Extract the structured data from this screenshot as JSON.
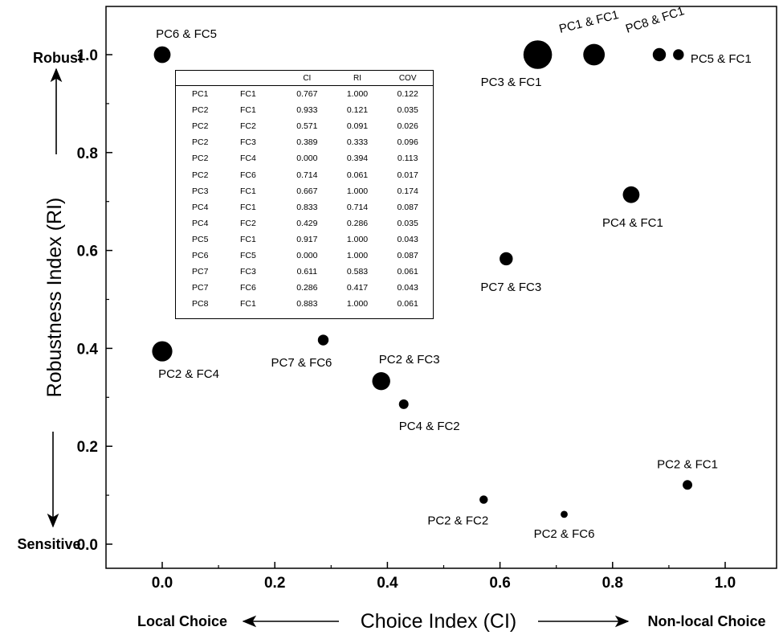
{
  "chart_data": {
    "type": "scatter",
    "xlabel": "Choice Index (CI)",
    "ylabel": "Robustness Index (RI)",
    "xlim": [
      -0.05,
      1.1
    ],
    "ylim": [
      -0.05,
      1.1
    ],
    "xticks": [
      "0.0",
      "0.2",
      "0.4",
      "0.6",
      "0.8",
      "1.0"
    ],
    "yticks": [
      "0.0",
      "0.2",
      "0.4",
      "0.6",
      "0.8",
      "1.0"
    ],
    "x_left_label": "Local Choice",
    "x_right_label": "Non-local Choice",
    "y_top_label": "Robust",
    "y_bottom_label": "Sensitive",
    "marker_size_encodes": "COV",
    "points": [
      {
        "label": "PC1 & FC1",
        "x": 0.767,
        "y": 1.0,
        "cov": 0.122
      },
      {
        "label": "PC2 & FC1",
        "x": 0.933,
        "y": 0.121,
        "cov": 0.035
      },
      {
        "label": "PC2 & FC2",
        "x": 0.571,
        "y": 0.091,
        "cov": 0.026
      },
      {
        "label": "PC2 & FC3",
        "x": 0.389,
        "y": 0.333,
        "cov": 0.096
      },
      {
        "label": "PC2 & FC4",
        "x": 0.0,
        "y": 0.394,
        "cov": 0.113
      },
      {
        "label": "PC2 & FC6",
        "x": 0.714,
        "y": 0.061,
        "cov": 0.017
      },
      {
        "label": "PC3 & FC1",
        "x": 0.667,
        "y": 1.0,
        "cov": 0.174
      },
      {
        "label": "PC4 & FC1",
        "x": 0.833,
        "y": 0.714,
        "cov": 0.087
      },
      {
        "label": "PC4 & FC2",
        "x": 0.429,
        "y": 0.286,
        "cov": 0.035
      },
      {
        "label": "PC5 & FC1",
        "x": 0.917,
        "y": 1.0,
        "cov": 0.043
      },
      {
        "label": "PC6 & FC5",
        "x": 0.0,
        "y": 1.0,
        "cov": 0.087
      },
      {
        "label": "PC7 & FC3",
        "x": 0.611,
        "y": 0.583,
        "cov": 0.061
      },
      {
        "label": "PC7 & FC6",
        "x": 0.286,
        "y": 0.417,
        "cov": 0.043
      },
      {
        "label": "PC8 & FC1",
        "x": 0.883,
        "y": 1.0,
        "cov": 0.061
      }
    ],
    "table": {
      "columns": [
        "",
        "",
        "CI",
        "RI",
        "COV"
      ],
      "rows": [
        [
          "PC1",
          "FC1",
          "0.767",
          "1.000",
          "0.122"
        ],
        [
          "PC2",
          "FC1",
          "0.933",
          "0.121",
          "0.035"
        ],
        [
          "PC2",
          "FC2",
          "0.571",
          "0.091",
          "0.026"
        ],
        [
          "PC2",
          "FC3",
          "0.389",
          "0.333",
          "0.096"
        ],
        [
          "PC2",
          "FC4",
          "0.000",
          "0.394",
          "0.113"
        ],
        [
          "PC2",
          "FC6",
          "0.714",
          "0.061",
          "0.017"
        ],
        [
          "PC3",
          "FC1",
          "0.667",
          "1.000",
          "0.174"
        ],
        [
          "PC4",
          "FC1",
          "0.833",
          "0.714",
          "0.087"
        ],
        [
          "PC4",
          "FC2",
          "0.429",
          "0.286",
          "0.035"
        ],
        [
          "PC5",
          "FC1",
          "0.917",
          "1.000",
          "0.043"
        ],
        [
          "PC6",
          "FC5",
          "0.000",
          "1.000",
          "0.087"
        ],
        [
          "PC7",
          "FC3",
          "0.611",
          "0.583",
          "0.061"
        ],
        [
          "PC7",
          "FC6",
          "0.286",
          "0.417",
          "0.043"
        ],
        [
          "PC8",
          "FC1",
          "0.883",
          "1.000",
          "0.061"
        ]
      ]
    },
    "colors": {
      "marker": "#000000",
      "axis": "#000000",
      "background": "#ffffff"
    }
  }
}
